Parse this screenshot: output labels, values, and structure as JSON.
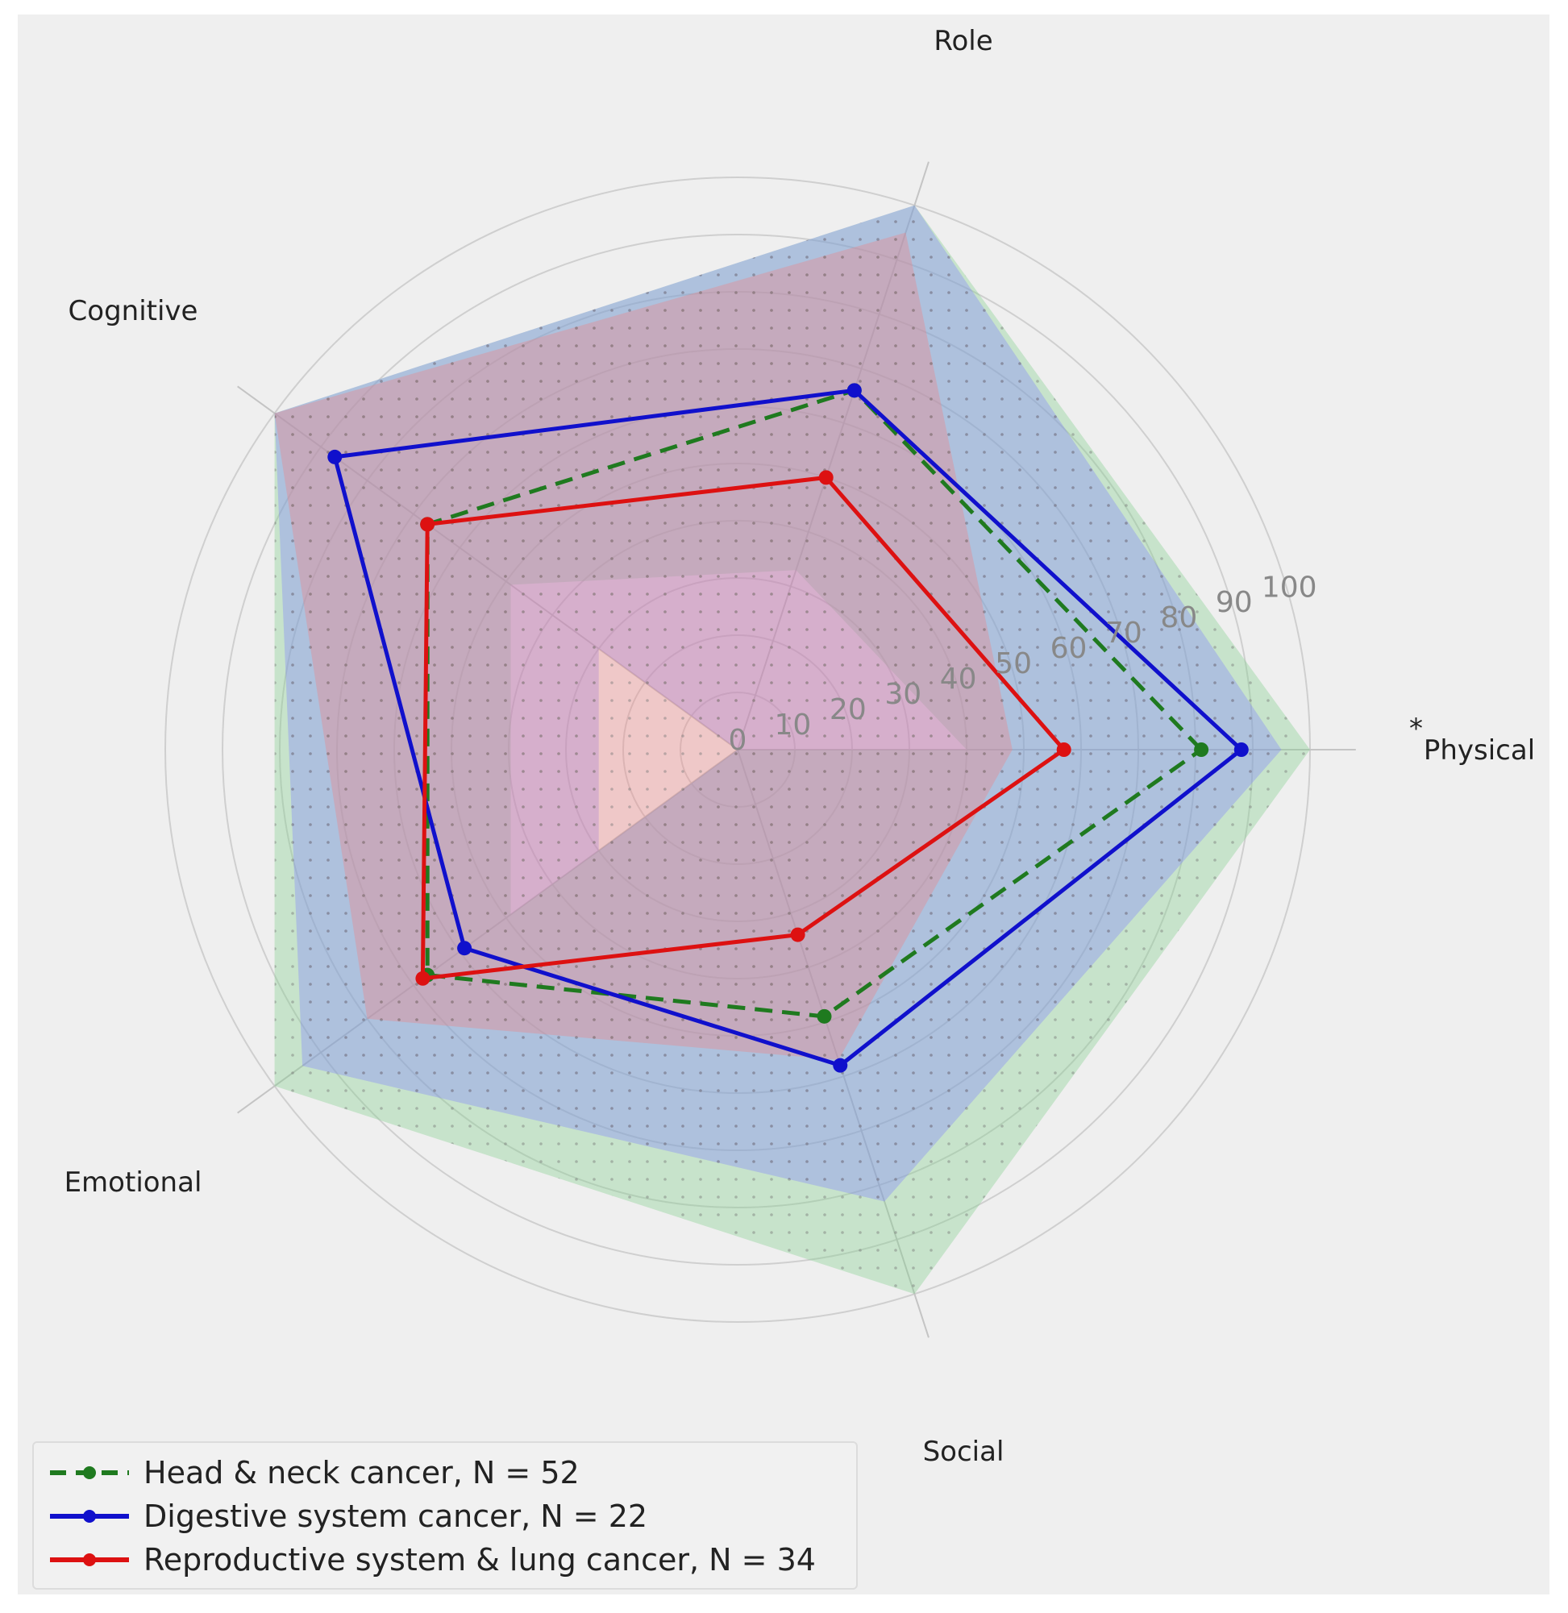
{
  "chart_data": {
    "type": "radar",
    "axes": [
      "Physical",
      "Role",
      "Cognitive",
      "Emotional",
      "Social"
    ],
    "r_ticks": [
      0,
      10,
      20,
      30,
      40,
      50,
      60,
      70,
      80,
      90,
      100
    ],
    "rlim": [
      0,
      100
    ],
    "significance_marker": {
      "axis": "Physical",
      "text": "*"
    },
    "series": [
      {
        "name": "Head & neck cancer, N = 52",
        "color": "#1f7a1f",
        "line_style": "dashed",
        "mean": [
          81,
          66,
          67,
          67,
          49
        ],
        "band_low": [
          40,
          33,
          49,
          49,
          0
        ],
        "band_high": [
          100,
          100,
          100,
          100,
          100
        ],
        "fill": "#7dcf8a"
      },
      {
        "name": "Digestive system cancer, N = 22",
        "color": "#1010cc",
        "line_style": "solid",
        "mean": [
          88,
          66,
          87,
          59,
          58
        ],
        "band_low": [
          0,
          0,
          30,
          30,
          0
        ],
        "band_high": [
          95,
          100,
          100,
          94,
          83
        ],
        "fill": "#8080ff"
      },
      {
        "name": "Reproductive system & lung cancer, N = 34",
        "color": "#dd1111",
        "line_style": "solid",
        "mean": [
          57,
          50,
          67,
          68,
          34
        ],
        "band_low": [
          0,
          0,
          0,
          0,
          0
        ],
        "band_high": [
          48,
          95,
          100,
          80,
          57
        ],
        "fill": "#f08080"
      }
    ]
  },
  "legend": {
    "items": [
      "Head & neck cancer, N = 52",
      "Digestive system cancer, N = 22",
      "Reproductive system & lung cancer, N = 34"
    ]
  }
}
